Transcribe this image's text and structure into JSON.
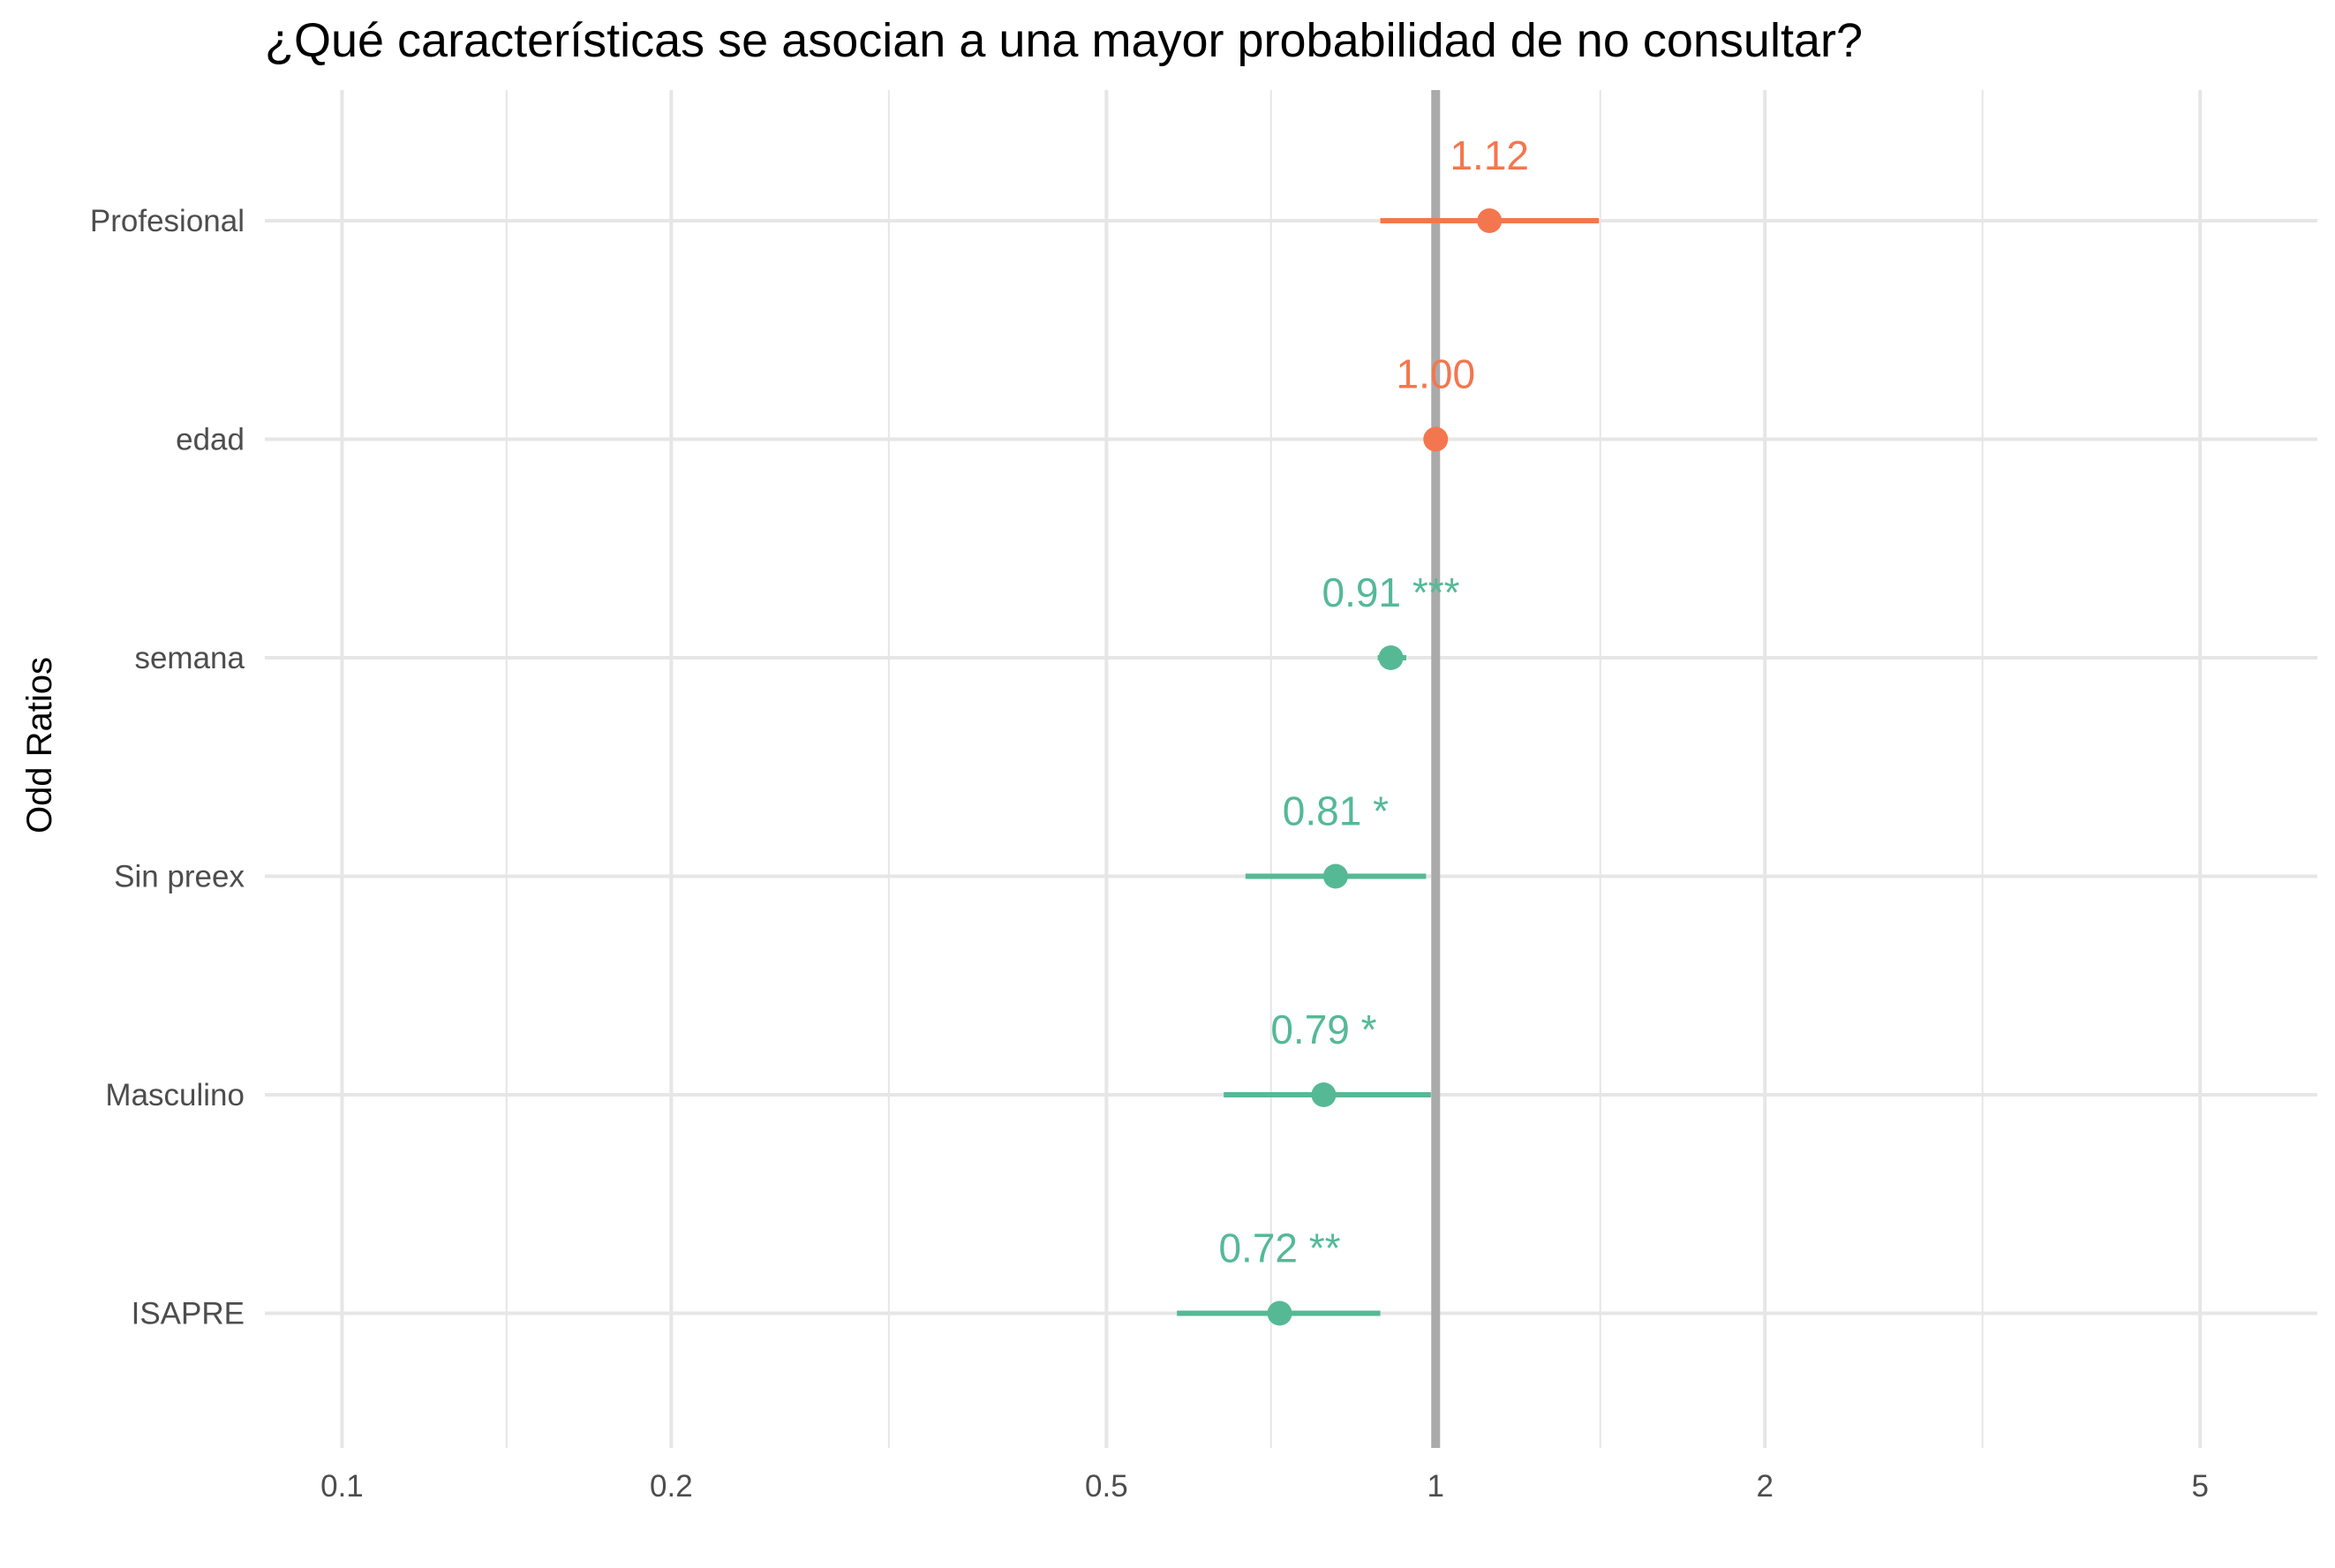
{
  "chart_data": {
    "type": "forest",
    "title": "¿Qué características se asocian a una mayor probabilidad de no consultar?",
    "ylabel": "Odd Ratios",
    "xscale": "log",
    "xlim": [
      0.085,
      6.4
    ],
    "xticks": [
      {
        "value": 0.1,
        "label": "0.1"
      },
      {
        "value": 0.2,
        "label": "0.2"
      },
      {
        "value": 0.5,
        "label": "0.5"
      },
      {
        "value": 1,
        "label": "1"
      },
      {
        "value": 2,
        "label": "2"
      },
      {
        "value": 5,
        "label": "5"
      }
    ],
    "xminor": [
      0.1414,
      0.3162,
      0.7071,
      1.4142,
      3.1623
    ],
    "reference_line": 1,
    "grid": true,
    "colors": {
      "positive": "#F4764E",
      "negative": "#55B996",
      "reference": "#AAAAAA",
      "grid": "#E6E6E6"
    },
    "rows": [
      {
        "term": "Profesional",
        "estimate": 1.12,
        "ci_low": 0.89,
        "ci_high": 1.41,
        "label": "1.12",
        "direction": "positive"
      },
      {
        "term": "edad",
        "estimate": 1.0,
        "ci_low": 0.997,
        "ci_high": 1.003,
        "label": "1.00",
        "direction": "positive"
      },
      {
        "term": "semana",
        "estimate": 0.91,
        "ci_low": 0.885,
        "ci_high": 0.94,
        "label": "0.91 ***",
        "direction": "negative"
      },
      {
        "term": "Sin preex",
        "estimate": 0.81,
        "ci_low": 0.67,
        "ci_high": 0.98,
        "label": "0.81 *",
        "direction": "negative"
      },
      {
        "term": "Masculino",
        "estimate": 0.79,
        "ci_low": 0.64,
        "ci_high": 0.99,
        "label": "0.79 *",
        "direction": "negative"
      },
      {
        "term": "ISAPRE",
        "estimate": 0.72,
        "ci_low": 0.58,
        "ci_high": 0.89,
        "label": "0.72 **",
        "direction": "negative"
      }
    ]
  }
}
